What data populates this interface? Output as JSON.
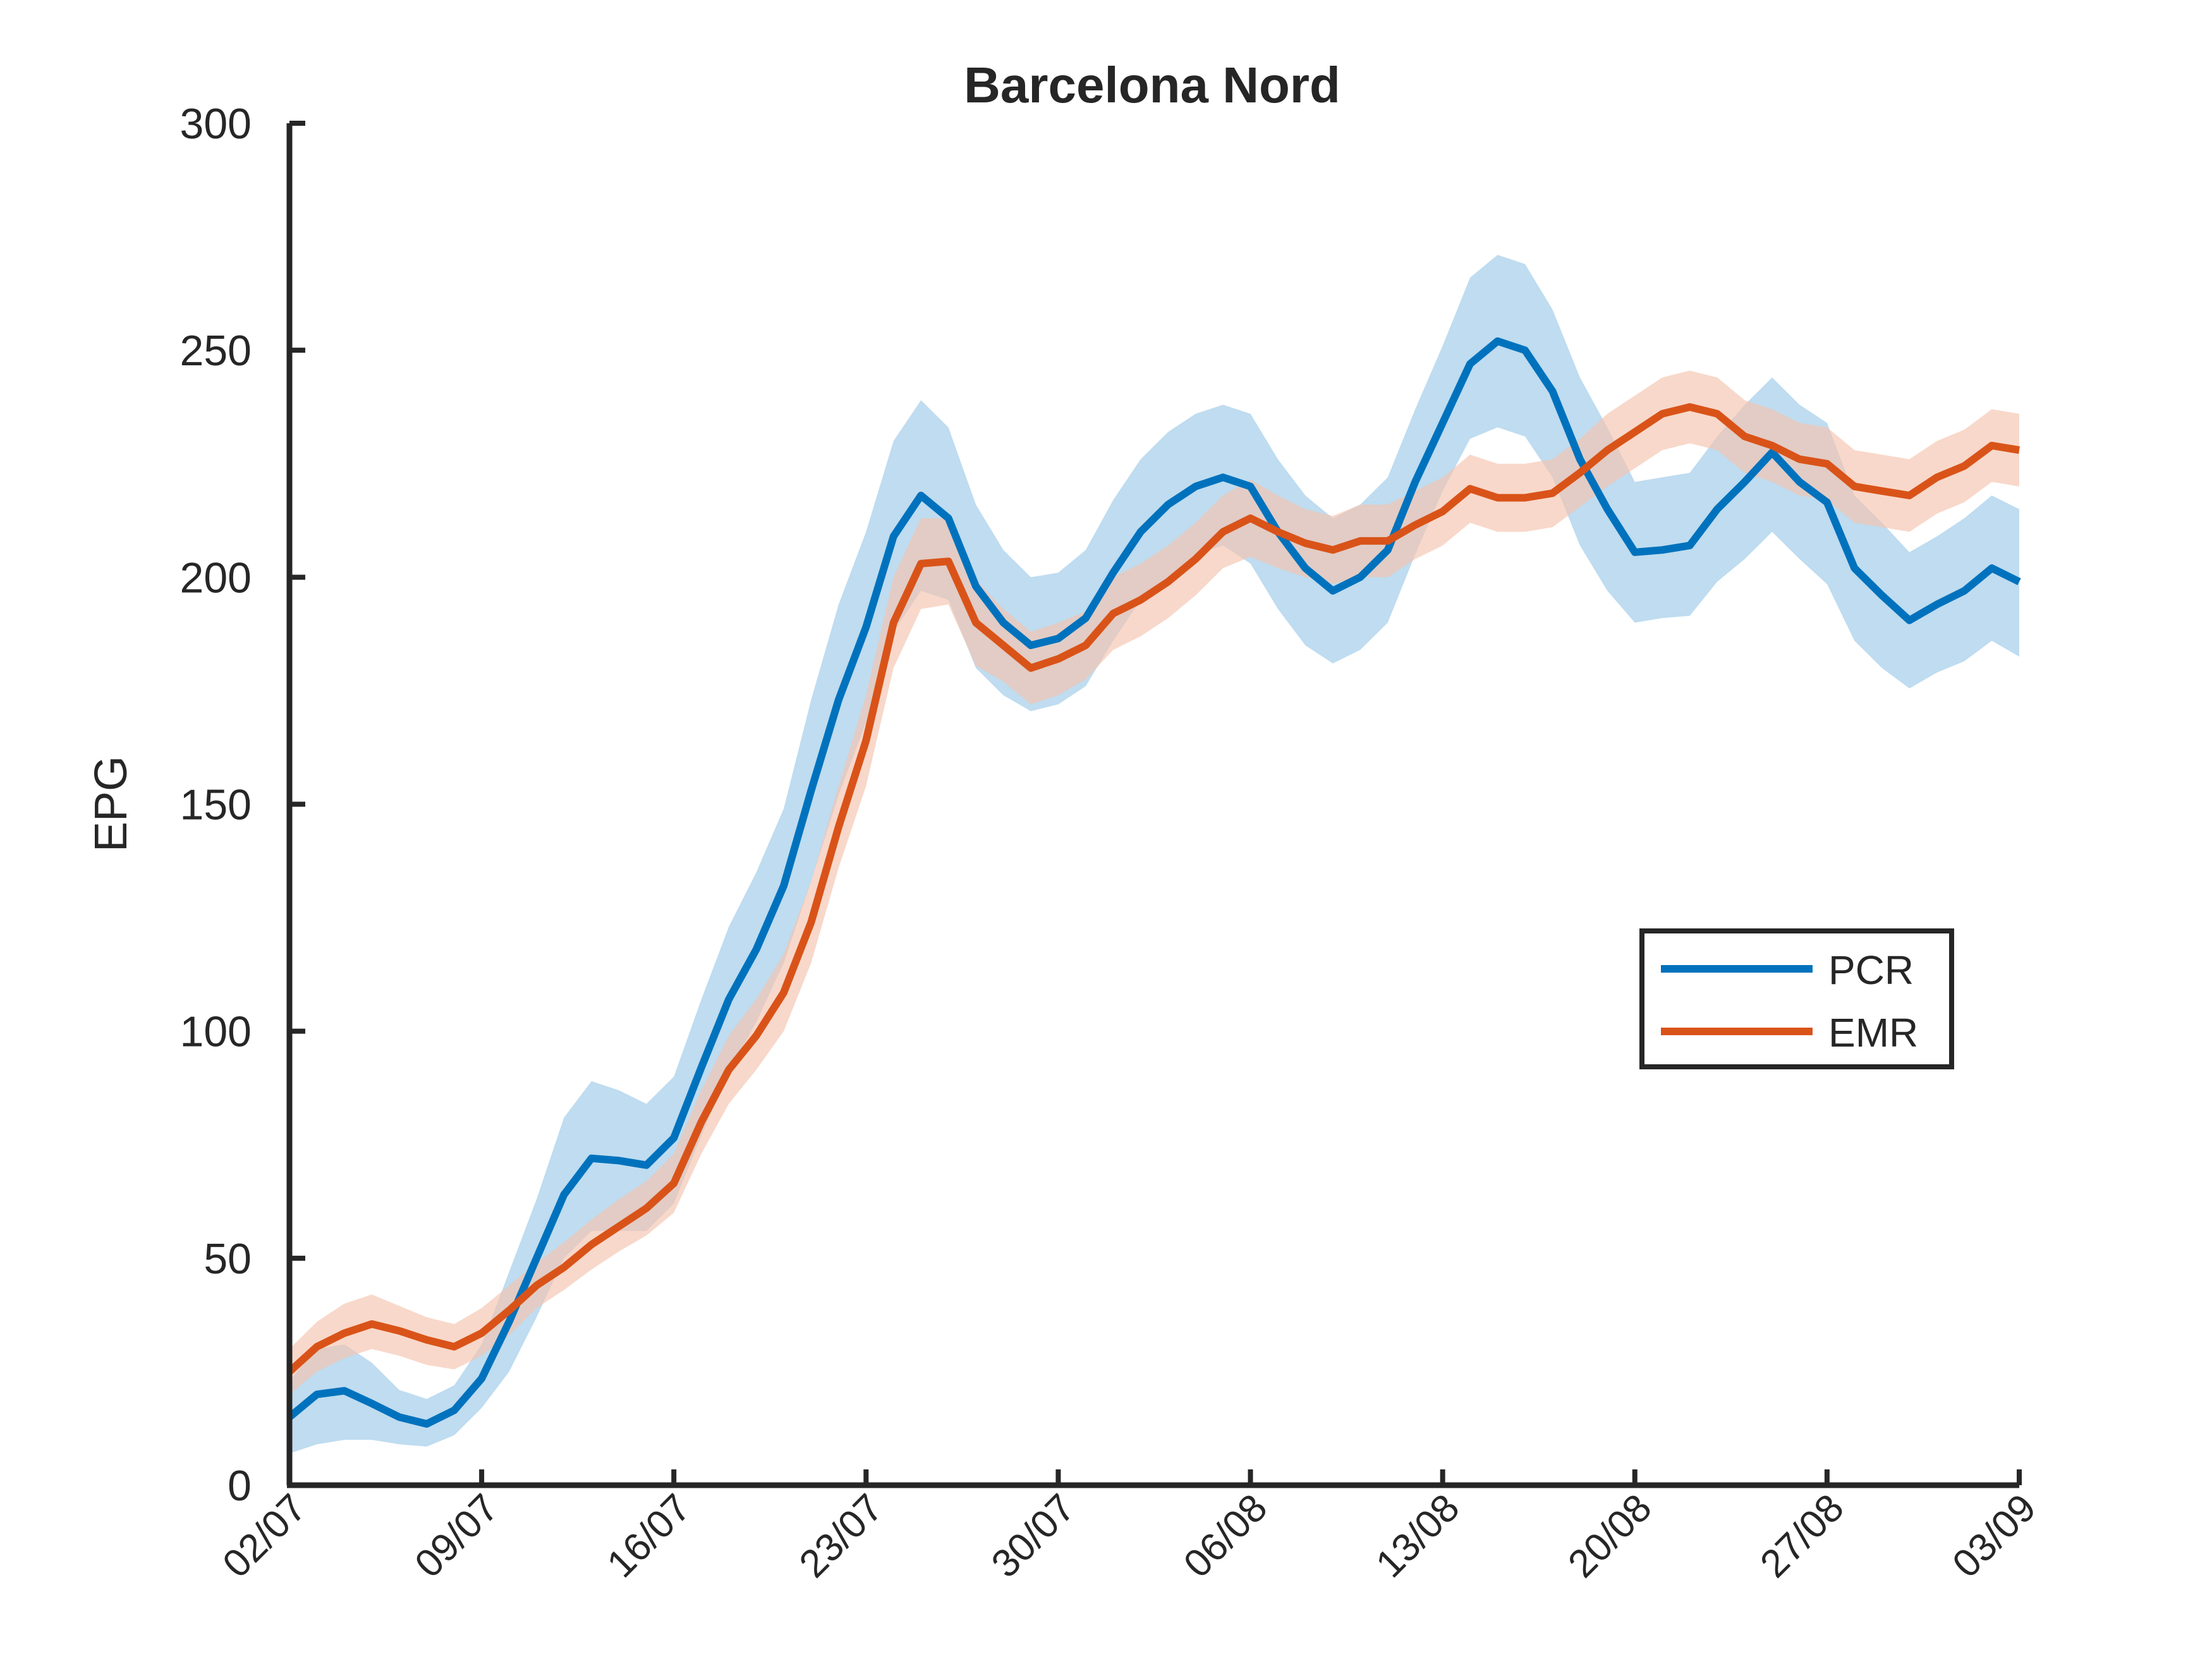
{
  "chart_data": {
    "type": "line",
    "title": "Barcelona Nord",
    "xlabel": "",
    "ylabel": "EPG",
    "ylim": [
      0,
      300
    ],
    "yticks": [
      0,
      50,
      100,
      150,
      200,
      250,
      300
    ],
    "xticks": [
      "02/07",
      "09/07",
      "16/07",
      "23/07",
      "30/07",
      "06/08",
      "13/08",
      "20/08",
      "27/08",
      "03/09"
    ],
    "grid": false,
    "legend_position": "right",
    "series": [
      {
        "name": "PCR",
        "color": "#0072BD",
        "band_color": "#9CC9E8",
        "values": [
          15,
          20,
          20.8,
          18,
          15,
          13.5,
          16.5,
          23.5,
          36,
          50,
          64,
          72,
          71.5,
          70.5,
          76.5,
          92,
          107,
          118,
          132,
          153,
          173,
          189,
          209,
          218,
          213,
          198,
          190,
          185,
          186.5,
          191,
          201,
          210,
          216,
          220,
          222,
          220,
          210,
          202,
          197,
          200,
          206,
          221,
          234,
          247,
          252,
          250,
          241,
          226,
          215,
          205.5,
          206,
          207,
          215,
          221,
          227.5,
          221,
          216.5,
          202,
          196,
          190.5,
          194,
          197,
          202,
          199
        ],
        "lower": [
          7,
          9,
          10,
          10,
          9,
          8.5,
          11,
          17,
          25,
          37,
          50,
          56,
          56,
          56,
          62,
          77,
          91,
          102,
          115,
          133,
          152,
          168,
          188,
          197,
          195,
          180,
          174,
          170.5,
          172,
          176,
          186,
          195,
          200,
          205,
          207,
          203,
          193,
          185,
          181,
          184,
          190,
          205,
          219,
          230.5,
          233,
          231,
          222,
          207,
          197,
          190,
          191,
          191.5,
          199,
          204,
          210,
          204,
          198.5,
          186,
          180,
          175.5,
          179,
          181.5,
          186,
          182.5
        ],
        "upper": [
          23,
          30,
          31,
          27,
          21,
          19,
          22,
          31,
          47,
          63,
          81,
          89,
          87,
          84,
          90,
          107,
          123,
          135,
          149,
          173,
          194,
          210,
          230,
          239,
          233,
          216,
          206,
          200,
          201,
          206,
          217,
          226,
          232,
          236,
          238,
          236,
          226,
          218,
          213,
          216,
          222,
          237,
          251,
          266,
          271,
          269,
          259,
          244,
          233,
          221,
          222,
          223,
          231,
          238,
          244,
          238,
          234,
          218,
          212,
          205.5,
          209,
          213,
          218,
          215
        ]
      },
      {
        "name": "EMR",
        "color": "#D95319",
        "band_color": "#F5C3AD",
        "values": [
          25,
          30.5,
          33.5,
          35.5,
          34,
          32,
          30.5,
          33.5,
          38.5,
          44,
          48,
          53,
          57,
          61,
          66.5,
          80,
          91.5,
          99,
          108.5,
          124,
          145,
          164,
          190,
          203,
          203.5,
          190,
          185,
          180,
          182,
          185,
          192,
          195,
          199,
          204,
          210,
          213,
          210,
          207.5,
          206,
          208,
          208,
          211.5,
          214.5,
          219.5,
          217.5,
          217.5,
          218.5,
          223,
          228,
          232,
          236,
          237.5,
          236,
          231,
          229,
          226,
          225,
          220,
          219,
          218,
          222,
          224.5,
          229,
          228
        ],
        "lower": [
          20,
          25,
          28,
          30,
          28.5,
          26.5,
          25.5,
          28.5,
          33,
          39,
          43,
          47.5,
          51.5,
          55,
          60,
          73,
          84,
          91.5,
          100,
          115,
          136,
          154,
          180,
          193,
          194,
          180.5,
          177,
          172,
          174,
          177.5,
          184,
          187,
          191,
          196,
          202,
          204.5,
          202,
          200,
          198.5,
          200,
          200,
          204,
          207,
          212,
          210,
          210,
          211,
          215.5,
          220,
          224,
          228,
          229.5,
          228,
          223,
          221,
          218,
          217,
          212,
          211,
          210,
          214,
          216.5,
          221,
          220
        ],
        "upper": [
          30,
          36,
          40,
          42,
          39.5,
          37,
          35.5,
          39,
          44,
          49,
          53.5,
          58.5,
          63,
          67,
          73,
          87,
          99,
          107,
          117,
          133,
          154,
          174,
          200,
          213,
          213,
          199.5,
          193,
          188,
          190,
          192.5,
          200,
          203,
          207,
          212,
          218,
          221.5,
          218,
          215,
          213.5,
          216,
          216,
          219,
          222,
          227,
          225,
          225,
          226,
          230.5,
          236,
          240,
          244,
          245.5,
          244,
          239,
          237,
          234,
          233,
          228,
          227,
          226,
          230,
          232.5,
          237,
          236
        ]
      }
    ]
  }
}
